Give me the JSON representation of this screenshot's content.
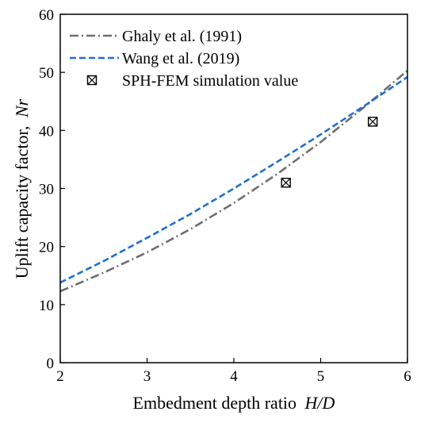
{
  "chart_data": {
    "type": "line",
    "xlabel": "Embedment depth ratio",
    "xlabel_var": "H/D",
    "ylabel": "Uplift  capacity factor,",
    "ylabel_var": "Nr",
    "xlim": [
      2,
      6
    ],
    "ylim": [
      0,
      60
    ],
    "xticks": [
      2,
      3,
      4,
      5,
      6
    ],
    "yticks": [
      0,
      10,
      20,
      30,
      40,
      50,
      60
    ],
    "xtick_labels": [
      "2",
      "3",
      "4",
      "5",
      "6"
    ],
    "ytick_labels": [
      "0",
      "10",
      "20",
      "30",
      "40",
      "50",
      "60"
    ],
    "grid": false,
    "legend_position": "top-left",
    "series": [
      {
        "name": "Ghaly et al. (1991)",
        "style": "dash-dot",
        "color": "#6e6e6e",
        "x": [
          2.0,
          2.5,
          3.0,
          3.5,
          4.0,
          4.5,
          5.0,
          5.5,
          6.0
        ],
        "y": [
          12.3,
          15.5,
          19.0,
          23.0,
          27.5,
          32.5,
          38.0,
          44.0,
          50.3
        ]
      },
      {
        "name": "Wang et al. (2019)",
        "style": "dashed",
        "color": "#1f6fd1",
        "x": [
          2.0,
          2.5,
          3.0,
          3.5,
          4.0,
          4.5,
          5.0,
          5.5,
          6.0
        ],
        "y": [
          13.8,
          17.5,
          21.5,
          25.6,
          30.0,
          34.6,
          39.3,
          44.2,
          49.2
        ]
      },
      {
        "name": "SPH-FEM simulation value",
        "style": "marker",
        "marker": "boxed-x",
        "color": "#000000",
        "x": [
          4.6,
          5.6
        ],
        "y": [
          31.0,
          41.5
        ]
      }
    ]
  }
}
